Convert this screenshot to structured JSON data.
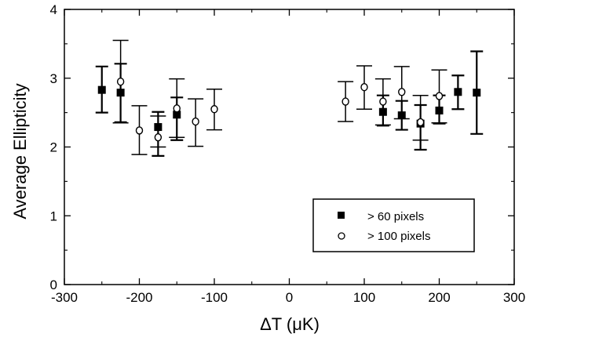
{
  "chart_data": {
    "type": "scatter",
    "title": "",
    "xlabel": "ΔT (μK)",
    "ylabel": "Average Ellipticity",
    "xlim": [
      -300,
      300
    ],
    "ylim": [
      0,
      4
    ],
    "x_ticks": [
      -300,
      -200,
      -100,
      0,
      100,
      200,
      300
    ],
    "y_ticks": [
      0,
      1,
      2,
      3,
      4
    ],
    "x_tick_labels": [
      "-300",
      "-200",
      "-100",
      "0",
      "100",
      "200",
      "300"
    ],
    "y_tick_labels": [
      "0",
      "1",
      "2",
      "3",
      "4"
    ],
    "grid": false,
    "legend_position": "bottom-right",
    "series": [
      {
        "name": "> 60 pixels",
        "marker": "filled-square",
        "points": [
          {
            "x": -250,
            "y": 2.83,
            "err_low": 2.5,
            "err_high": 3.17
          },
          {
            "x": -225,
            "y": 2.79,
            "err_low": 2.36,
            "err_high": 3.21
          },
          {
            "x": -175,
            "y": 2.29,
            "err_low": 1.87,
            "err_high": 2.51
          },
          {
            "x": -150,
            "y": 2.47,
            "err_low": 2.1,
            "err_high": 2.72
          },
          {
            "x": 125,
            "y": 2.51,
            "err_low": 2.31,
            "err_high": 2.75
          },
          {
            "x": 150,
            "y": 2.46,
            "err_low": 2.25,
            "err_high": 2.67
          },
          {
            "x": 175,
            "y": 2.34,
            "err_low": 1.96,
            "err_high": 2.61
          },
          {
            "x": 200,
            "y": 2.53,
            "err_low": 2.34,
            "err_high": 2.75
          },
          {
            "x": 225,
            "y": 2.8,
            "err_low": 2.55,
            "err_high": 3.04
          },
          {
            "x": 250,
            "y": 2.79,
            "err_low": 2.19,
            "err_high": 3.39
          }
        ]
      },
      {
        "name": "> 100 pixels",
        "marker": "open-circle",
        "points": [
          {
            "x": -225,
            "y": 2.95,
            "err_low": 2.35,
            "err_high": 3.55
          },
          {
            "x": -200,
            "y": 2.24,
            "err_low": 1.89,
            "err_high": 2.6
          },
          {
            "x": -175,
            "y": 2.14,
            "err_low": 2.0,
            "err_high": 2.45
          },
          {
            "x": -150,
            "y": 2.56,
            "err_low": 2.14,
            "err_high": 2.99
          },
          {
            "x": -125,
            "y": 2.37,
            "err_low": 2.01,
            "err_high": 2.7
          },
          {
            "x": -100,
            "y": 2.55,
            "err_low": 2.25,
            "err_high": 2.84
          },
          {
            "x": 75,
            "y": 2.66,
            "err_low": 2.37,
            "err_high": 2.95
          },
          {
            "x": 100,
            "y": 2.87,
            "err_low": 2.55,
            "err_high": 3.18
          },
          {
            "x": 125,
            "y": 2.66,
            "err_low": 2.32,
            "err_high": 2.99
          },
          {
            "x": 150,
            "y": 2.8,
            "err_low": 2.41,
            "err_high": 3.17
          },
          {
            "x": 175,
            "y": 2.36,
            "err_low": 2.1,
            "err_high": 2.75
          },
          {
            "x": 200,
            "y": 2.74,
            "err_low": 2.35,
            "err_high": 3.12
          }
        ]
      }
    ]
  }
}
